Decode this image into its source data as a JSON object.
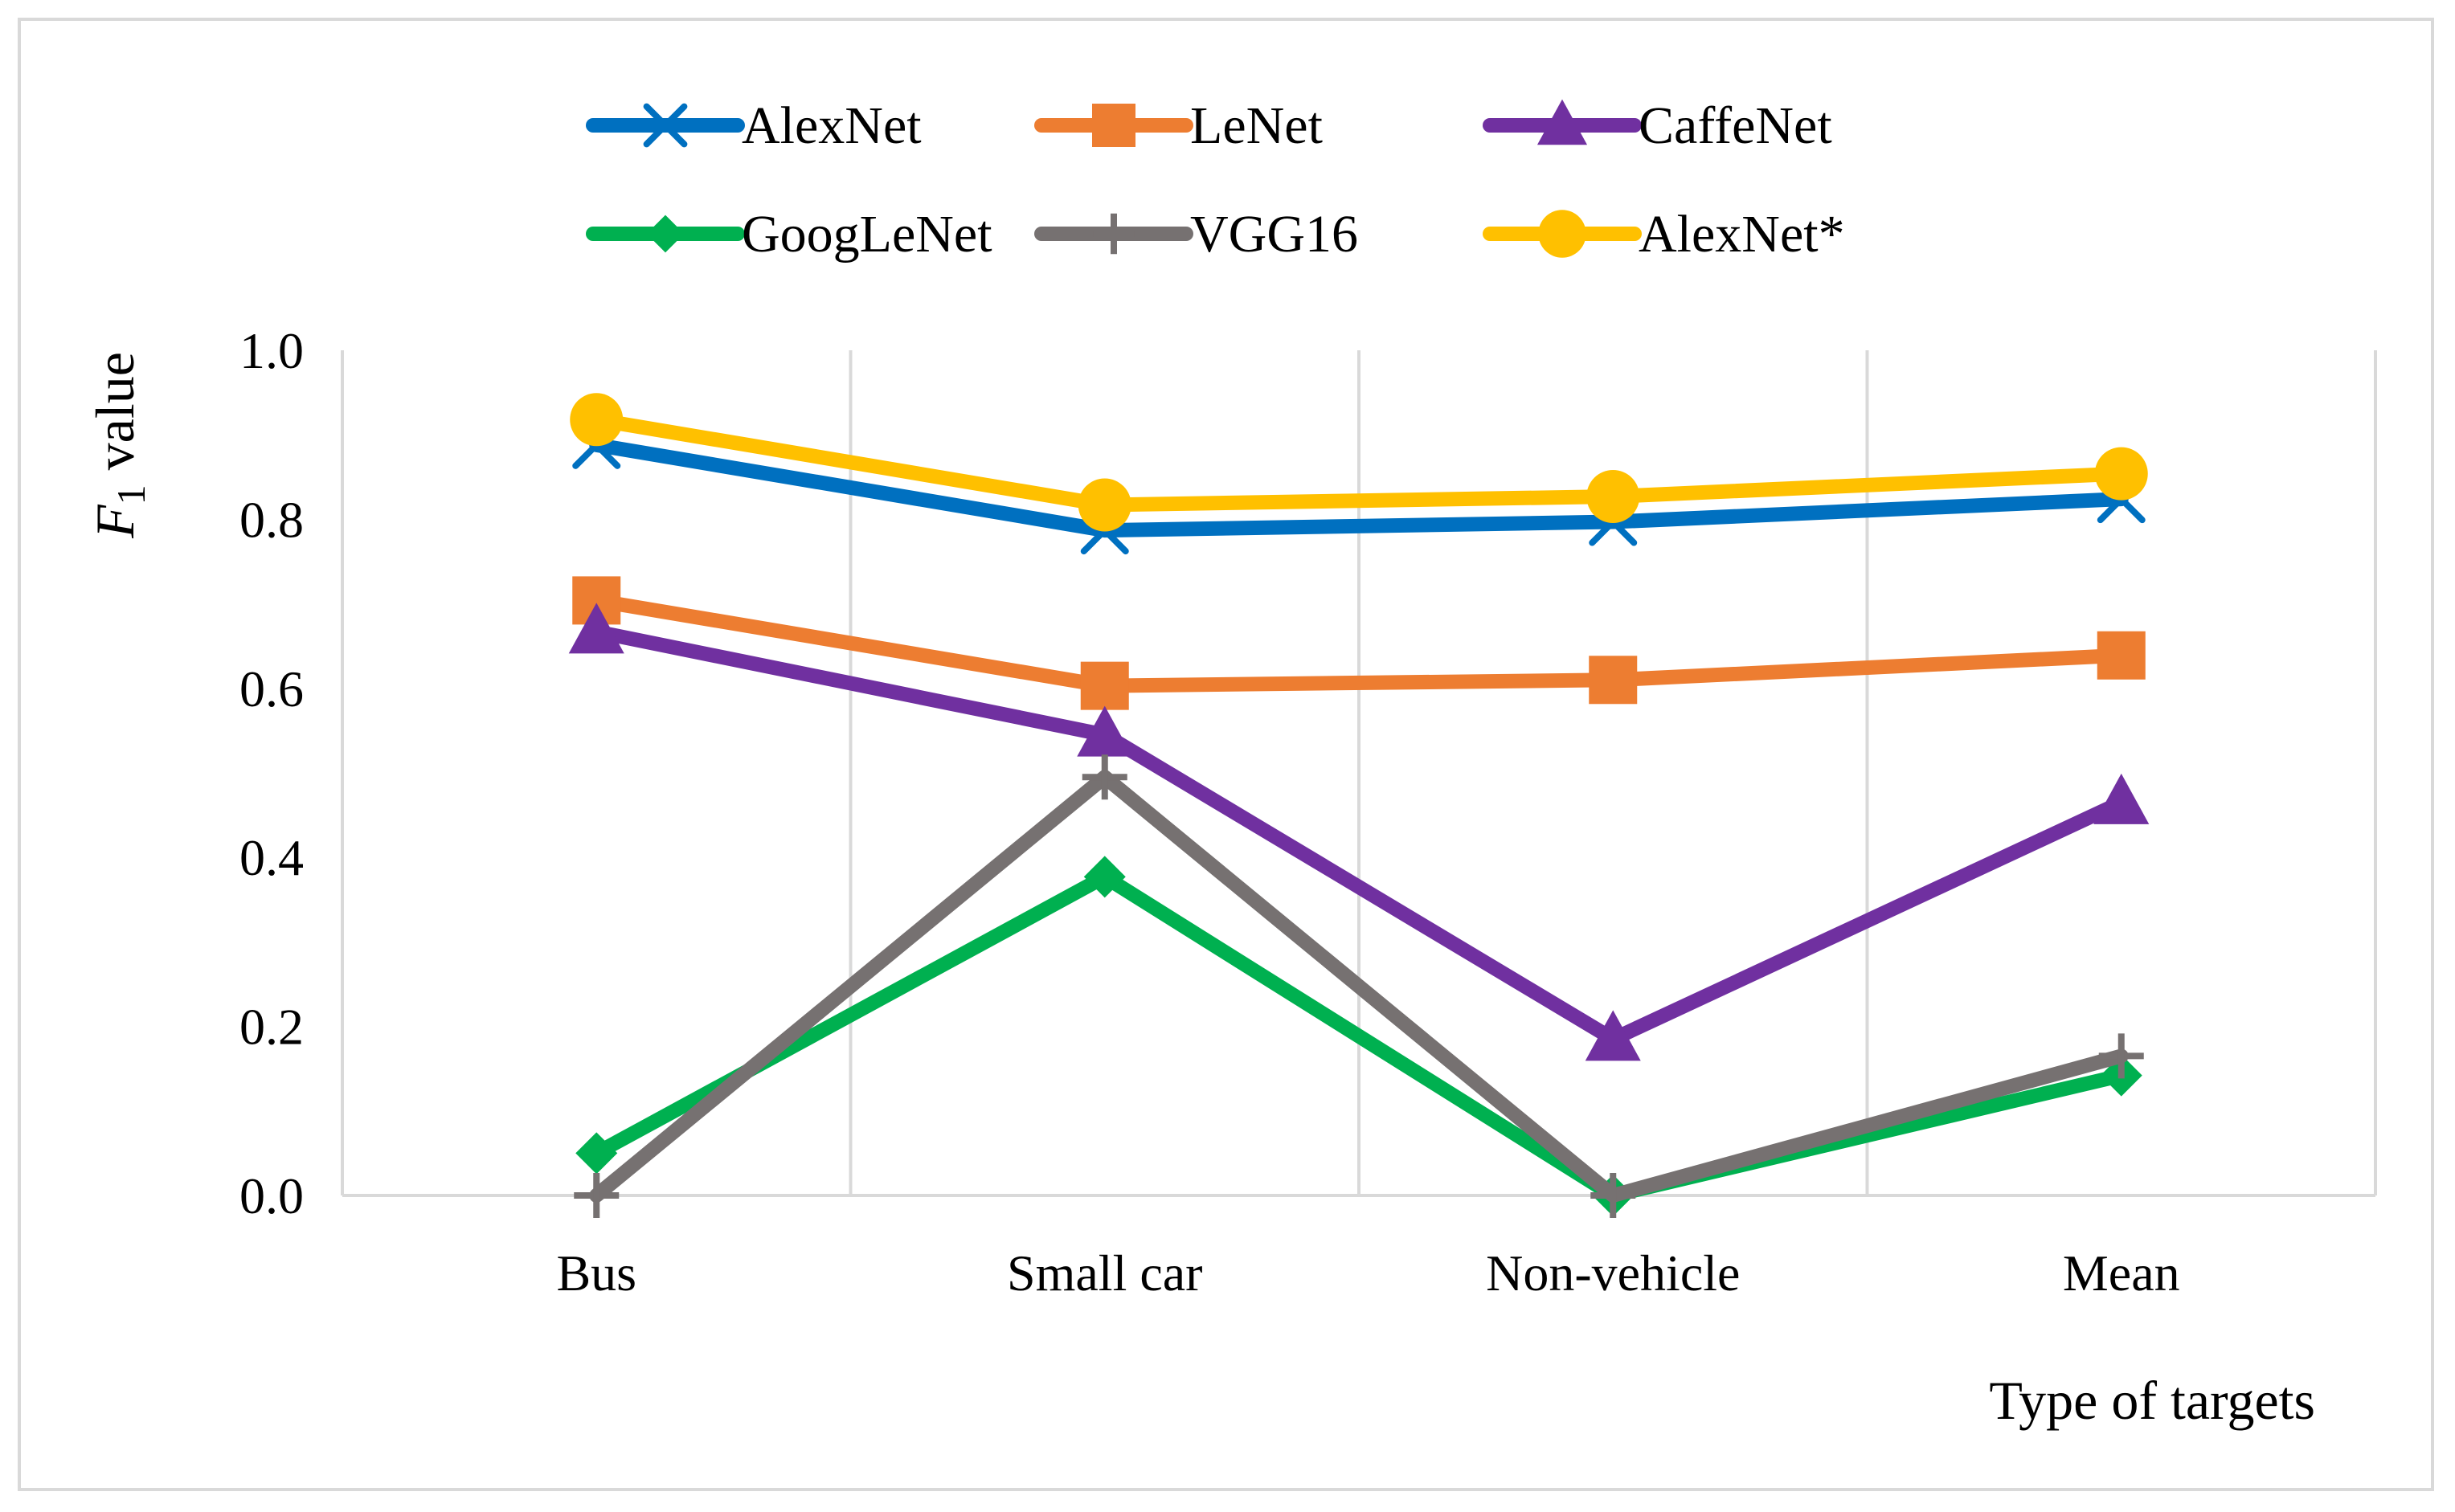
{
  "chart_data": {
    "type": "line",
    "title": "",
    "xlabel": "Type of targets",
    "ylabel": {
      "italic": "F",
      "subscript": "1",
      "rest": "value"
    },
    "categories": [
      "Bus",
      "Small car",
      "Non-vehicle",
      "Mean"
    ],
    "ylim": [
      0,
      1
    ],
    "yticks": [
      "0.0",
      "0.2",
      "0.4",
      "0.6",
      "0.8",
      "1.0"
    ],
    "ytick_values": [
      0,
      0.2,
      0.4,
      0.6,
      0.8,
      1.0
    ],
    "grid": "vertical",
    "legend_position": "top",
    "series": [
      {
        "name": "AlexNet",
        "color": "#0070C0",
        "marker": "x",
        "values": [
          0.888,
          0.787,
          0.797,
          0.824
        ]
      },
      {
        "name": "LeNet",
        "color": "#ED7D31",
        "marker": "square",
        "values": [
          0.704,
          0.603,
          0.61,
          0.639
        ]
      },
      {
        "name": "CaffeNet",
        "color": "#7030A0",
        "marker": "triangle",
        "values": [
          0.667,
          0.545,
          0.185,
          0.465
        ]
      },
      {
        "name": "GoogLeNet",
        "color": "#00B050",
        "marker": "diamond",
        "values": [
          0.05,
          0.377,
          0.0,
          0.142
        ]
      },
      {
        "name": "VGG16",
        "color": "#767171",
        "marker": "plus",
        "values": [
          0.0,
          0.495,
          0.0,
          0.165
        ]
      },
      {
        "name": "AlexNet*",
        "color": "#FFC000",
        "marker": "circle",
        "values": [
          0.918,
          0.817,
          0.827,
          0.854
        ]
      }
    ]
  }
}
